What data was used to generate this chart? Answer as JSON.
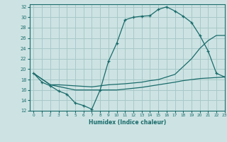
{
  "bg_color": "#cde3e3",
  "grid_color": "#a8c8c8",
  "line_color": "#1a6b6b",
  "xlabel": "Humidex (Indice chaleur)",
  "xlim": [
    -0.5,
    23
  ],
  "ylim": [
    12,
    32.5
  ],
  "xticks": [
    0,
    1,
    2,
    3,
    4,
    5,
    6,
    7,
    8,
    9,
    10,
    11,
    12,
    13,
    14,
    15,
    16,
    17,
    18,
    19,
    20,
    21,
    22,
    23
  ],
  "yticks": [
    12,
    14,
    16,
    18,
    20,
    22,
    24,
    26,
    28,
    30,
    32
  ],
  "line1_x": [
    0,
    1,
    2,
    3,
    4,
    5,
    6,
    7,
    8,
    9,
    10,
    11,
    12,
    13,
    14,
    15,
    16,
    17,
    18,
    19,
    20,
    21,
    22,
    23
  ],
  "line1_y": [
    19.2,
    17.5,
    16.8,
    15.8,
    15.2,
    13.5,
    13.0,
    12.3,
    16.0,
    21.5,
    25.0,
    29.5,
    30.0,
    30.2,
    30.3,
    31.5,
    32.0,
    31.2,
    30.2,
    29.0,
    26.5,
    23.5,
    19.2,
    18.5
  ],
  "line2_x": [
    0,
    2,
    3,
    5,
    7,
    9,
    11,
    13,
    14,
    15,
    16,
    17,
    18,
    19,
    20,
    21,
    22,
    23
  ],
  "line2_y": [
    19.2,
    17.0,
    17.0,
    16.8,
    16.6,
    17.0,
    17.2,
    17.5,
    17.8,
    18.0,
    18.5,
    19.0,
    20.5,
    22.0,
    24.0,
    25.5,
    26.5,
    26.5
  ],
  "line3_x": [
    0,
    2,
    5,
    8,
    10,
    13,
    15,
    17,
    18,
    19,
    20,
    21,
    22,
    23
  ],
  "line3_y": [
    19.2,
    17.0,
    16.0,
    16.0,
    16.0,
    16.5,
    17.0,
    17.5,
    17.8,
    18.0,
    18.2,
    18.3,
    18.4,
    18.5
  ]
}
